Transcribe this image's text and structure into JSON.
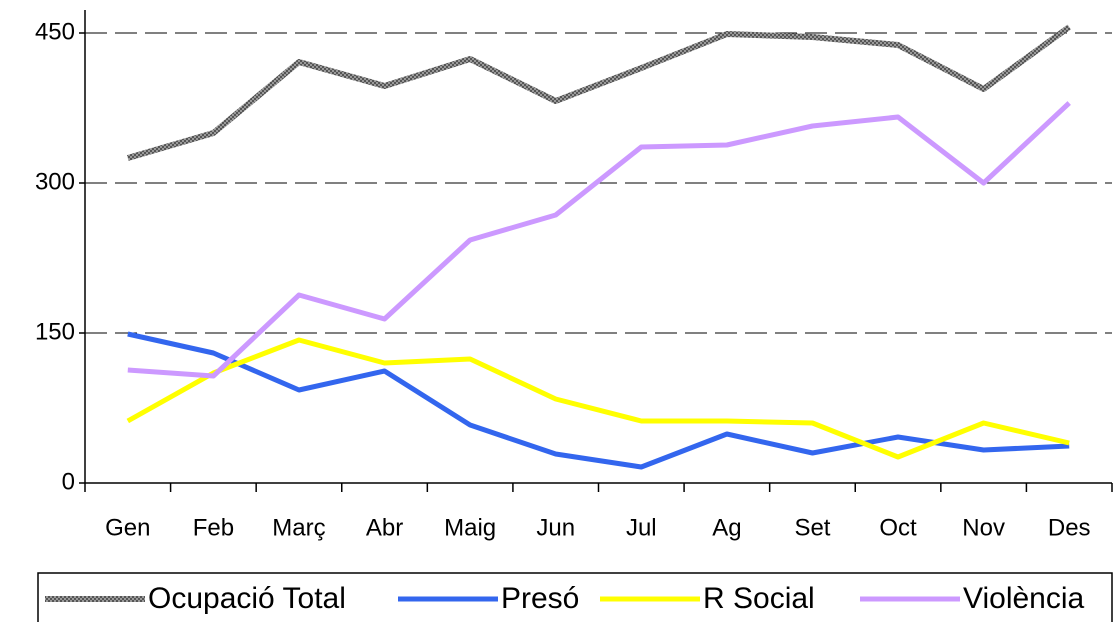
{
  "chart_data": {
    "type": "line",
    "categories": [
      "Gen",
      "Feb",
      "Març",
      "Abr",
      "Maig",
      "Jun",
      "Jul",
      "Ag",
      "Set",
      "Oct",
      "Nov",
      "Des"
    ],
    "series": [
      {
        "name": "Ocupació Total",
        "color": "#808080",
        "values": [
          325,
          350,
          421,
          397,
          424,
          382,
          415,
          449,
          446,
          438,
          394,
          456
        ]
      },
      {
        "name": "Presó",
        "color": "#3366ee",
        "values": [
          149,
          130,
          93,
          112,
          58,
          29,
          16,
          49,
          30,
          46,
          33,
          37
        ]
      },
      {
        "name": "R Social",
        "color": "#ffff00",
        "values": [
          62,
          110,
          143,
          120,
          124,
          84,
          62,
          62,
          60,
          26,
          60,
          40
        ]
      },
      {
        "name": "Violència",
        "color": "#cc99ff",
        "values": [
          113,
          107,
          188,
          164,
          243,
          268,
          336,
          338,
          357,
          366,
          300,
          380
        ]
      }
    ],
    "ylim": [
      0,
      473
    ],
    "yticks": [
      0,
      150,
      300,
      450
    ],
    "grid": true,
    "legend": "bottom"
  }
}
